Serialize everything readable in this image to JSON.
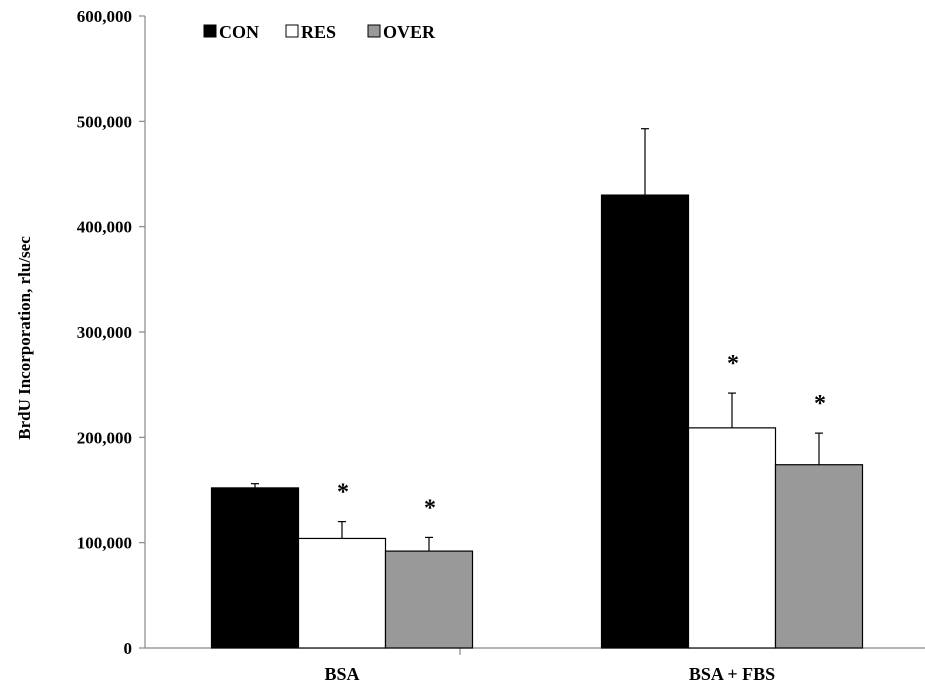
{
  "chart_data": {
    "type": "bar",
    "title": "",
    "xlabel": "",
    "ylabel": "BrdU Incorporation, rlu/sec",
    "ylim": [
      0,
      600000
    ],
    "yticks": [
      0,
      100000,
      200000,
      300000,
      400000,
      500000,
      600000
    ],
    "ytick_labels": [
      "0",
      "100,000",
      "200,000",
      "300,000",
      "400,000",
      "500,000",
      "600,000"
    ],
    "categories": [
      "BSA",
      "BSA + FBS"
    ],
    "legend_position": "top-left",
    "grid": false,
    "series": [
      {
        "name": "CON",
        "color": "#000000",
        "values": [
          152000,
          430000
        ],
        "errors": [
          4000,
          63000
        ],
        "significance": [
          "",
          ""
        ]
      },
      {
        "name": "RES",
        "color": "#ffffff",
        "values": [
          104000,
          209000
        ],
        "errors": [
          16000,
          33000
        ],
        "significance": [
          "*",
          "*"
        ]
      },
      {
        "name": "OVER",
        "color": "#999999",
        "values": [
          92000,
          174000
        ],
        "errors": [
          13000,
          30000
        ],
        "significance": [
          "*",
          "*"
        ]
      }
    ]
  }
}
